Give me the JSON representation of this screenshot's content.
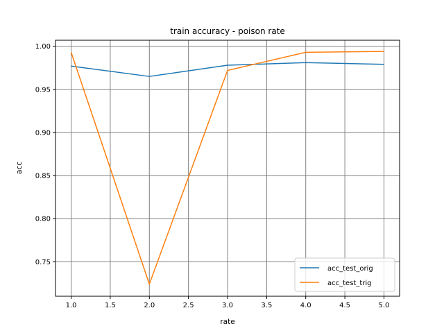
{
  "chart_data": {
    "type": "line",
    "title": "train accuracy - poison rate",
    "xlabel": "rate",
    "ylabel": "acc",
    "x": [
      1.0,
      2.0,
      3.0,
      4.0,
      5.0
    ],
    "series": [
      {
        "name": "acc_test_orig",
        "color": "#1f77b4",
        "values": [
          0.977,
          0.965,
          0.978,
          0.981,
          0.979
        ]
      },
      {
        "name": "acc_test_trig",
        "color": "#ff7f0e",
        "values": [
          0.993,
          0.724,
          0.972,
          0.993,
          0.994
        ]
      }
    ],
    "xlim": [
      0.8,
      5.2
    ],
    "ylim": [
      0.71,
      1.007
    ],
    "xticks": [
      1.0,
      1.5,
      2.0,
      2.5,
      3.0,
      3.5,
      4.0,
      4.5,
      5.0
    ],
    "xtick_labels": [
      "1.0",
      "1.5",
      "2.0",
      "2.5",
      "3.0",
      "3.5",
      "4.0",
      "4.5",
      "5.0"
    ],
    "yticks": [
      0.75,
      0.8,
      0.85,
      0.9,
      0.95,
      1.0
    ],
    "ytick_labels": [
      "0.75",
      "0.80",
      "0.85",
      "0.90",
      "0.95",
      "1.00"
    ],
    "grid": true,
    "grid_color": "#808080",
    "legend_position": "lower-right"
  }
}
